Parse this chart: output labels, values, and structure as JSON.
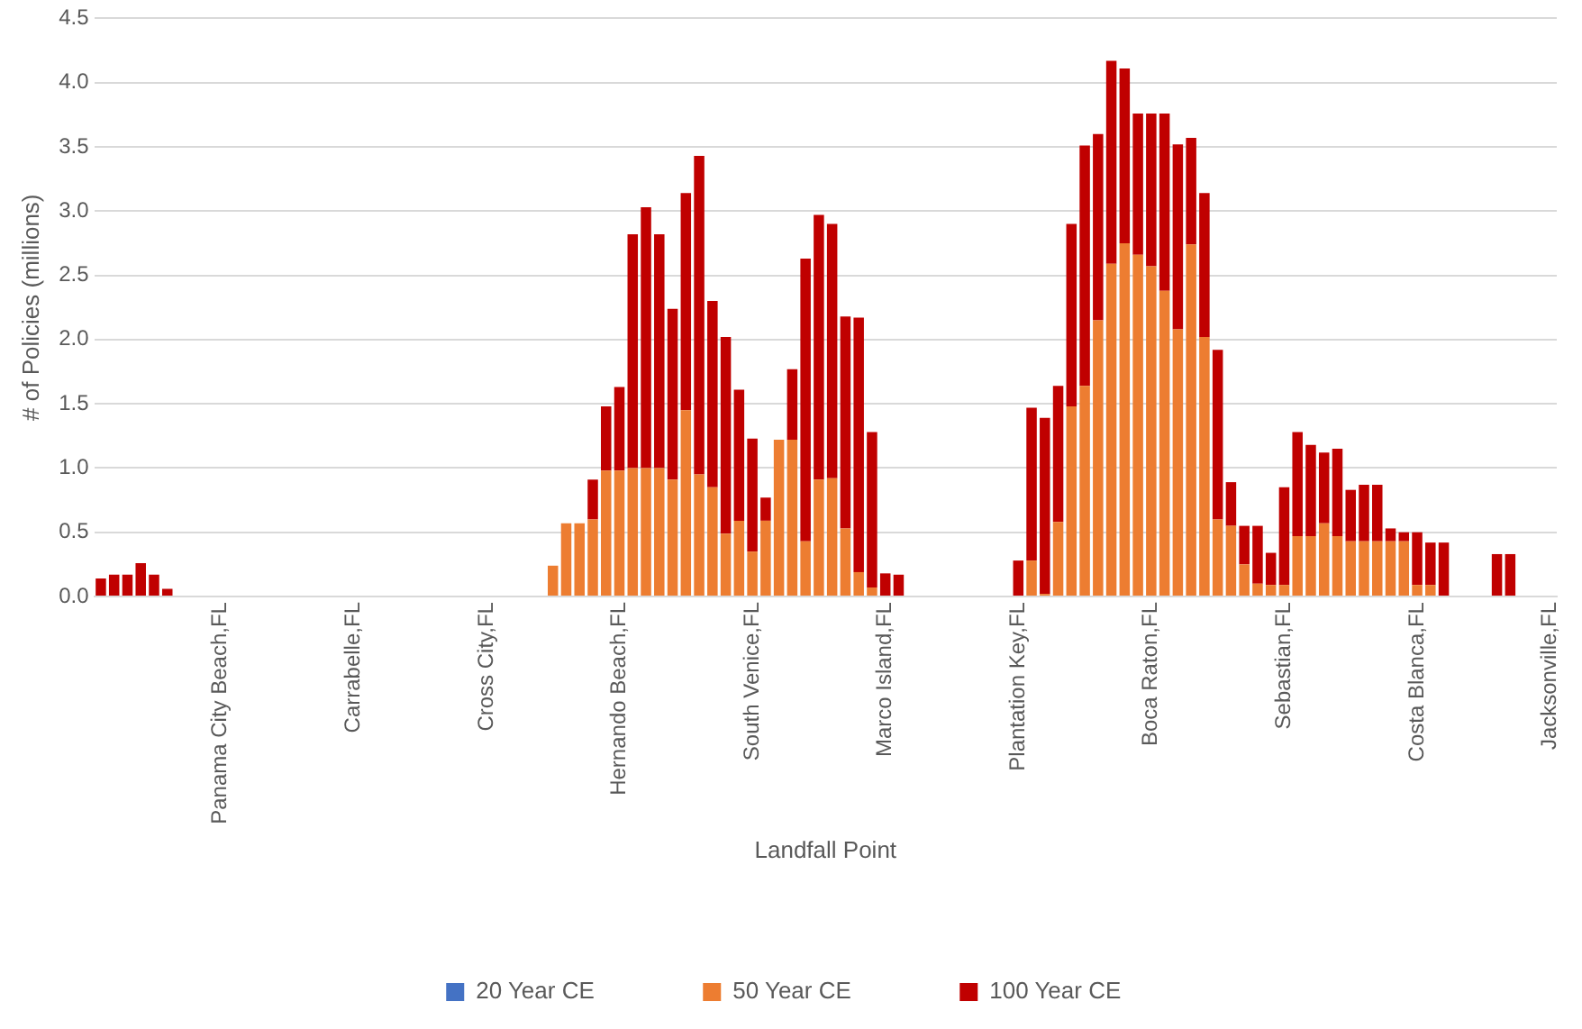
{
  "chart_data": {
    "type": "bar",
    "stacked": true,
    "xlabel": "Landfall Point",
    "ylabel": "# of Policies (millions)",
    "categories": [
      null,
      null,
      null,
      null,
      null,
      null,
      null,
      null,
      null,
      "Panama City Beach,FL",
      null,
      null,
      null,
      null,
      null,
      null,
      null,
      null,
      null,
      "Carrabelle,FL",
      null,
      null,
      null,
      null,
      null,
      null,
      null,
      null,
      null,
      "Cross City,FL",
      null,
      null,
      null,
      null,
      null,
      null,
      null,
      null,
      null,
      "Hernando Beach,FL",
      null,
      null,
      null,
      null,
      null,
      null,
      null,
      null,
      null,
      "South Venice,FL",
      null,
      null,
      null,
      null,
      null,
      null,
      null,
      null,
      null,
      "Marco Island,FL",
      null,
      null,
      null,
      null,
      null,
      null,
      null,
      null,
      null,
      "Plantation Key,FL",
      null,
      null,
      null,
      null,
      null,
      null,
      null,
      null,
      null,
      "Boca Raton,FL",
      null,
      null,
      null,
      null,
      null,
      null,
      null,
      null,
      null,
      "Sebastian,FL",
      null,
      null,
      null,
      null,
      null,
      null,
      null,
      null,
      null,
      "Costa Blanca,FL",
      null,
      null,
      null,
      null,
      null,
      null,
      null,
      null,
      null,
      "Jacksonville,FL"
    ],
    "series": [
      {
        "name": "20 Year CE",
        "color": "#4472c4",
        "values": [
          0,
          0,
          0,
          0,
          0,
          0,
          0,
          0,
          0,
          0,
          0,
          0,
          0,
          0,
          0,
          0,
          0,
          0,
          0,
          0,
          0,
          0,
          0,
          0,
          0,
          0,
          0,
          0,
          0,
          0,
          0,
          0,
          0,
          0,
          0,
          0,
          0,
          0,
          0,
          0,
          0,
          0,
          0,
          0,
          0,
          0,
          0,
          0,
          0,
          0,
          0,
          0,
          0,
          0,
          0,
          0,
          0,
          0,
          0,
          0,
          0,
          0,
          0,
          0,
          0,
          0,
          0,
          0,
          0,
          0,
          0,
          0,
          0,
          0,
          0,
          0,
          0,
          0,
          0,
          0,
          0,
          0,
          0,
          0,
          0,
          0,
          0,
          0,
          0,
          0,
          0,
          0,
          0,
          0,
          0,
          0,
          0,
          0,
          0,
          0,
          0,
          0,
          0,
          0,
          0,
          0,
          0,
          0,
          0,
          0
        ]
      },
      {
        "name": "50 Year CE",
        "color": "#ed7d31",
        "values": [
          0,
          0,
          0,
          0,
          0,
          0,
          0,
          0,
          0,
          0,
          0,
          0,
          0,
          0,
          0,
          0,
          0,
          0,
          0,
          0,
          0,
          0,
          0,
          0,
          0,
          0,
          0,
          0,
          0,
          0,
          0,
          0,
          0,
          0,
          0.24,
          0.57,
          0.57,
          0.6,
          0.98,
          0.98,
          1.0,
          1.0,
          1.0,
          0.91,
          1.45,
          0.95,
          0.85,
          0.49,
          0.59,
          0.35,
          0.59,
          1.22,
          1.22,
          0.43,
          0.91,
          0.92,
          0.53,
          0.19,
          0.07,
          0,
          0,
          0,
          0,
          0,
          0,
          0,
          0,
          0,
          0,
          0,
          0.28,
          0.02,
          0.58,
          1.48,
          1.64,
          2.15,
          2.59,
          2.75,
          2.66,
          2.57,
          2.38,
          2.08,
          2.74,
          2.02,
          0.6,
          0.55,
          0.25,
          0.1,
          0.09,
          0.09,
          0.47,
          0.47,
          0.57,
          0.47,
          0.43,
          0.43,
          0.43,
          0.43,
          0.43,
          0.09,
          0.09,
          0,
          0,
          0,
          0,
          0,
          0,
          0,
          0,
          0
        ]
      },
      {
        "name": "100 Year CE",
        "color": "#c00000",
        "values": [
          0.14,
          0.17,
          0.17,
          0.26,
          0.17,
          0.06,
          0,
          0,
          0,
          0,
          0,
          0,
          0,
          0,
          0,
          0,
          0,
          0,
          0,
          0,
          0,
          0,
          0,
          0,
          0,
          0,
          0,
          0,
          0,
          0,
          0,
          0,
          0,
          0,
          0,
          0,
          0,
          0.31,
          0.5,
          0.65,
          1.82,
          2.03,
          1.82,
          1.33,
          1.69,
          2.48,
          1.45,
          1.53,
          1.02,
          0.88,
          0.18,
          0,
          0.55,
          2.2,
          2.06,
          1.98,
          1.65,
          1.98,
          1.21,
          0.18,
          0.17,
          0,
          0,
          0,
          0,
          0,
          0,
          0,
          0,
          0.28,
          1.19,
          1.37,
          1.06,
          1.42,
          1.87,
          1.45,
          1.58,
          1.36,
          1.1,
          1.19,
          1.38,
          1.44,
          0.83,
          1.12,
          1.32,
          0.34,
          0.3,
          0.45,
          0.25,
          0.76,
          0.81,
          0.71,
          0.55,
          0.68,
          0.4,
          0.44,
          0.44,
          0.1,
          0.07,
          0.41,
          0.33,
          0.42,
          0,
          0,
          0,
          0.33,
          0.33,
          0,
          0,
          0
        ]
      }
    ],
    "ylim": [
      0,
      4.5
    ],
    "yticks": [
      {
        "value": 0,
        "label": "0.0"
      },
      {
        "value": 0.5,
        "label": "0.5"
      },
      {
        "value": 1,
        "label": "1.0"
      },
      {
        "value": 1.5,
        "label": "1.5"
      },
      {
        "value": 2,
        "label": "2.0"
      },
      {
        "value": 2.5,
        "label": "2.5"
      },
      {
        "value": 3,
        "label": "3.0"
      },
      {
        "value": 3.5,
        "label": "3.5"
      },
      {
        "value": 4,
        "label": "4.0"
      },
      {
        "value": 4.5,
        "label": "4.5"
      }
    ],
    "grid": "y",
    "legend": "bottom"
  }
}
